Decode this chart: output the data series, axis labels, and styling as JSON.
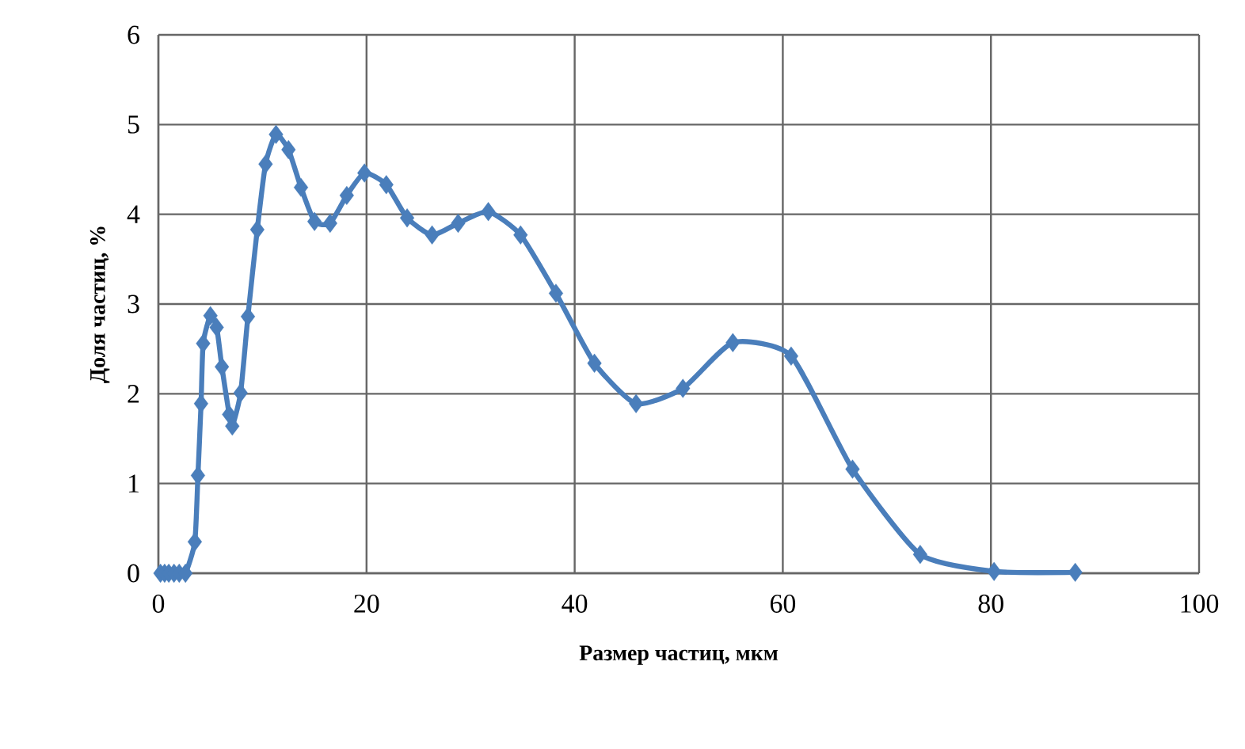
{
  "chart_data": {
    "type": "line",
    "xlabel": "Размер частиц, мкм",
    "ylabel": "Доля частиц, %",
    "x": [
      0.2,
      0.6,
      1.0,
      1.5,
      2.0,
      2.6,
      3.5,
      3.8,
      4.1,
      4.3,
      5.0,
      5.6,
      6.1,
      6.8,
      7.1,
      7.9,
      8.6,
      9.5,
      10.3,
      11.3,
      12.5,
      13.7,
      15.0,
      16.5,
      18.1,
      19.8,
      21.9,
      23.9,
      26.3,
      28.8,
      31.7,
      34.8,
      38.2,
      41.9,
      45.9,
      50.4,
      55.2,
      60.8,
      66.7,
      73.2,
      80.3,
      88.1
    ],
    "series": [
      {
        "color": "#4a7ebb",
        "values": [
          0,
          0,
          0,
          0,
          0,
          0,
          0.35,
          1.09,
          1.89,
          2.56,
          2.87,
          2.74,
          2.3,
          1.77,
          1.64,
          2.01,
          2.86,
          3.83,
          4.56,
          4.89,
          4.72,
          4.3,
          3.92,
          3.9,
          4.21,
          4.46,
          4.33,
          3.96,
          3.77,
          3.9,
          4.03,
          3.77,
          3.12,
          2.34,
          1.89,
          2.06,
          2.57,
          2.42,
          1.16,
          0.21,
          0.02,
          0.01
        ]
      }
    ],
    "xlim": [
      0,
      100
    ],
    "ylim": [
      0,
      6
    ],
    "xticks": [
      0,
      20,
      40,
      60,
      80,
      100
    ],
    "yticks": [
      0,
      1,
      2,
      3,
      4,
      5,
      6
    ],
    "grid": true,
    "marker": "diamond",
    "line_style": "solid"
  }
}
